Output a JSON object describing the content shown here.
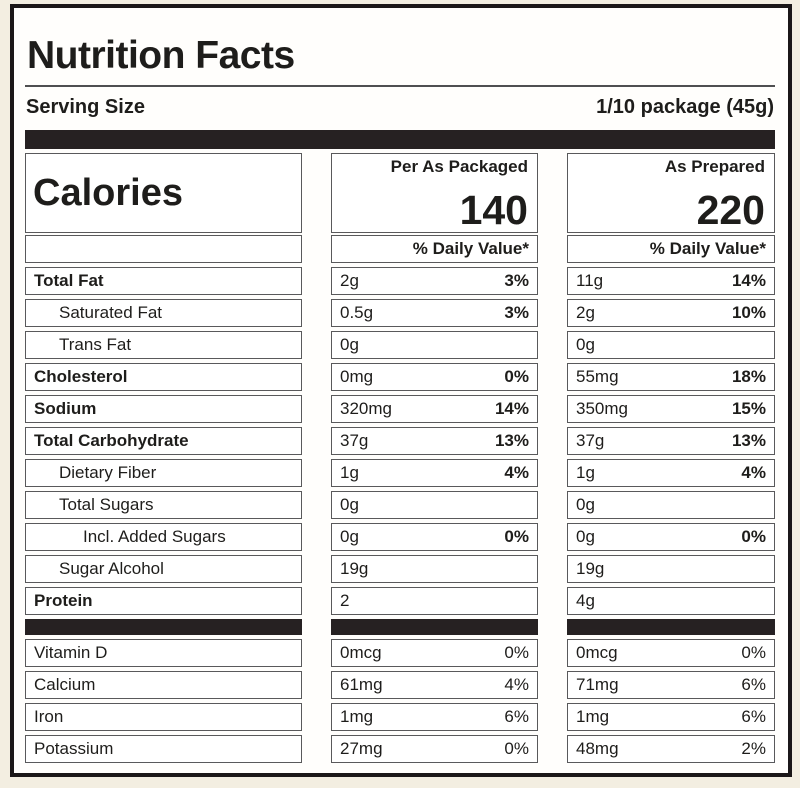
{
  "label": {
    "title": "Nutrition Facts",
    "serving_size_label": "Serving Size",
    "serving_size_value": "1/10 package (45g)",
    "calories_label": "Calories",
    "columns": [
      {
        "header": "Per As Packaged",
        "calories": "140",
        "dv_header": "% Daily Value*"
      },
      {
        "header": "As Prepared",
        "calories": "220",
        "dv_header": "% Daily Value*"
      }
    ],
    "rows": [
      {
        "name": "Total Fat",
        "bold": true,
        "indent": 0,
        "cols": [
          {
            "amount": "2g",
            "dv": "3%"
          },
          {
            "amount": "11g",
            "dv": "14%"
          }
        ]
      },
      {
        "name": "Saturated Fat",
        "bold": false,
        "indent": 1,
        "cols": [
          {
            "amount": "0.5g",
            "dv": "3%"
          },
          {
            "amount": "2g",
            "dv": "10%"
          }
        ]
      },
      {
        "name": "Trans Fat",
        "bold": false,
        "indent": 1,
        "cols": [
          {
            "amount": "0g",
            "dv": ""
          },
          {
            "amount": "0g",
            "dv": ""
          }
        ]
      },
      {
        "name": "Cholesterol",
        "bold": true,
        "indent": 0,
        "cols": [
          {
            "amount": "0mg",
            "dv": "0%"
          },
          {
            "amount": "55mg",
            "dv": "18%"
          }
        ]
      },
      {
        "name": "Sodium",
        "bold": true,
        "indent": 0,
        "cols": [
          {
            "amount": "320mg",
            "dv": "14%"
          },
          {
            "amount": "350mg",
            "dv": "15%"
          }
        ]
      },
      {
        "name": "Total Carbohydrate",
        "bold": true,
        "indent": 0,
        "cols": [
          {
            "amount": "37g",
            "dv": "13%"
          },
          {
            "amount": "37g",
            "dv": "13%"
          }
        ]
      },
      {
        "name": "Dietary Fiber",
        "bold": false,
        "indent": 1,
        "cols": [
          {
            "amount": "1g",
            "dv": "4%"
          },
          {
            "amount": "1g",
            "dv": "4%"
          }
        ]
      },
      {
        "name": "Total Sugars",
        "bold": false,
        "indent": 1,
        "cols": [
          {
            "amount": "0g",
            "dv": ""
          },
          {
            "amount": "0g",
            "dv": ""
          }
        ]
      },
      {
        "name": "Incl. Added Sugars",
        "bold": false,
        "indent": 2,
        "cols": [
          {
            "amount": "0g",
            "dv": "0%"
          },
          {
            "amount": "0g",
            "dv": "0%"
          }
        ]
      },
      {
        "name": "Sugar Alcohol",
        "bold": false,
        "indent": 1,
        "cols": [
          {
            "amount": "19g",
            "dv": ""
          },
          {
            "amount": "19g",
            "dv": ""
          }
        ]
      },
      {
        "name": "Protein",
        "bold": true,
        "indent": 0,
        "cols": [
          {
            "amount": "2",
            "dv": ""
          },
          {
            "amount": "4g",
            "dv": ""
          }
        ]
      }
    ],
    "vitamins": [
      {
        "name": "Vitamin D",
        "bold": false,
        "indent": 0,
        "cols": [
          {
            "amount": "0mcg",
            "dv": "0%"
          },
          {
            "amount": "0mcg",
            "dv": "0%"
          }
        ]
      },
      {
        "name": "Calcium",
        "bold": false,
        "indent": 0,
        "cols": [
          {
            "amount": "61mg",
            "dv": "4%"
          },
          {
            "amount": "71mg",
            "dv": "6%"
          }
        ]
      },
      {
        "name": "Iron",
        "bold": false,
        "indent": 0,
        "cols": [
          {
            "amount": "1mg",
            "dv": "6%"
          },
          {
            "amount": "1mg",
            "dv": "6%"
          }
        ]
      },
      {
        "name": "Potassium",
        "bold": false,
        "indent": 0,
        "cols": [
          {
            "amount": "27mg",
            "dv": "0%"
          },
          {
            "amount": "48mg",
            "dv": "2%"
          }
        ]
      }
    ]
  },
  "colors": {
    "page-bg": "#f3eee1",
    "label-bg": "#fffefc",
    "ink": "#1e1d1b",
    "frame": "#1b1718",
    "bar": "#262122",
    "cell-border": "#59595b"
  }
}
